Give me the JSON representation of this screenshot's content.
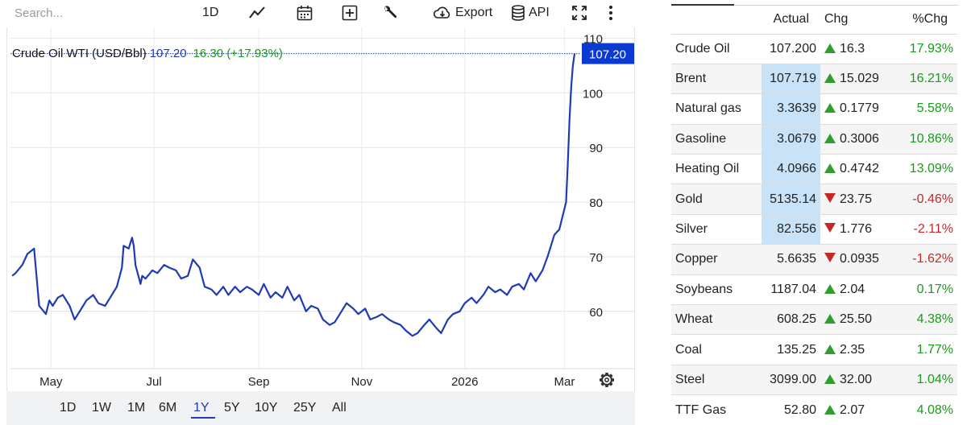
{
  "toolbar": {
    "search_placeholder": "Search...",
    "interval_label": "1D",
    "export_label": "Export",
    "api_label": "API"
  },
  "legend": {
    "name": "Crude Oil WTI (USD/Bbl)",
    "value": "107.20",
    "change": "16.30 (+17.93%)"
  },
  "chart_data": {
    "type": "line",
    "title": "Crude Oil WTI (USD/Bbl)",
    "xlabel": "",
    "ylabel": "",
    "x_ticks": [
      "May",
      "Jul",
      "Sep",
      "Nov",
      "2026",
      "Mar"
    ],
    "y_ticks": [
      60,
      70,
      80,
      90,
      100,
      110
    ],
    "ylim": [
      49.5,
      112
    ],
    "last_value_label": "107.20",
    "grid": true,
    "series": [
      {
        "color": "#1f3bb3",
        "x": [
          "2025-04-08",
          "2025-04-10",
          "2025-04-14",
          "2025-04-17",
          "2025-04-21",
          "2025-04-24",
          "2025-04-28",
          "2025-04-30",
          "2025-05-02",
          "2025-05-05",
          "2025-05-08",
          "2025-05-12",
          "2025-05-15",
          "2025-05-19",
          "2025-05-22",
          "2025-05-26",
          "2025-05-29",
          "2025-06-02",
          "2025-06-05",
          "2025-06-09",
          "2025-06-12",
          "2025-06-13",
          "2025-06-16",
          "2025-06-18",
          "2025-06-19",
          "2025-06-20",
          "2025-06-23",
          "2025-06-24",
          "2025-06-26",
          "2025-06-30",
          "2025-07-03",
          "2025-07-07",
          "2025-07-10",
          "2025-07-14",
          "2025-07-17",
          "2025-07-21",
          "2025-07-24",
          "2025-07-28",
          "2025-07-31",
          "2025-08-04",
          "2025-08-07",
          "2025-08-11",
          "2025-08-14",
          "2025-08-18",
          "2025-08-21",
          "2025-08-25",
          "2025-08-28",
          "2025-09-01",
          "2025-09-04",
          "2025-09-08",
          "2025-09-11",
          "2025-09-15",
          "2025-09-18",
          "2025-09-22",
          "2025-09-25",
          "2025-09-29",
          "2025-10-02",
          "2025-10-06",
          "2025-10-09",
          "2025-10-13",
          "2025-10-16",
          "2025-10-20",
          "2025-10-23",
          "2025-10-27",
          "2025-10-30",
          "2025-11-03",
          "2025-11-06",
          "2025-11-10",
          "2025-11-13",
          "2025-11-17",
          "2025-11-20",
          "2025-11-24",
          "2025-11-27",
          "2025-12-01",
          "2025-12-04",
          "2025-12-08",
          "2025-12-11",
          "2025-12-15",
          "2025-12-18",
          "2025-12-22",
          "2025-12-25",
          "2025-12-29",
          "2026-01-01",
          "2026-01-05",
          "2026-01-08",
          "2026-01-12",
          "2026-01-15",
          "2026-01-19",
          "2026-01-22",
          "2026-01-26",
          "2026-01-29",
          "2026-02-02",
          "2026-02-05",
          "2026-02-09",
          "2026-02-12",
          "2026-02-16",
          "2026-02-19",
          "2026-02-23",
          "2026-02-26",
          "2026-03-02",
          "2026-03-03",
          "2026-03-04",
          "2026-03-05",
          "2026-03-06",
          "2026-03-07"
        ],
        "y": [
          66.5,
          67.0,
          68.5,
          70.5,
          71.5,
          61.0,
          59.5,
          62.0,
          61.0,
          62.5,
          63.0,
          61.0,
          58.5,
          60.5,
          62.0,
          63.0,
          61.5,
          61.0,
          62.5,
          64.5,
          68.0,
          72.0,
          71.5,
          73.5,
          72.0,
          68.5,
          65.0,
          66.5,
          66.0,
          67.5,
          67.0,
          68.5,
          68.0,
          67.5,
          66.0,
          66.5,
          69.5,
          68.0,
          64.5,
          64.0,
          63.0,
          64.5,
          63.0,
          64.5,
          63.5,
          64.5,
          64.0,
          63.0,
          65.0,
          62.5,
          63.5,
          62.5,
          64.5,
          62.0,
          63.0,
          60.0,
          61.0,
          60.5,
          58.5,
          57.5,
          58.0,
          60.0,
          61.5,
          60.5,
          59.5,
          60.5,
          58.5,
          59.0,
          59.5,
          58.5,
          58.0,
          57.5,
          56.5,
          55.5,
          56.0,
          57.5,
          58.5,
          57.0,
          56.0,
          58.5,
          59.5,
          60.0,
          61.5,
          62.5,
          61.5,
          63.0,
          64.5,
          63.5,
          64.0,
          63.0,
          64.5,
          65.0,
          64.0,
          67.0,
          65.5,
          67.5,
          70.0,
          74.0,
          75.0,
          80.0,
          87.0,
          95.0,
          101.0,
          105.0,
          107.2
        ]
      }
    ]
  },
  "range_buttons": [
    "1D",
    "1W",
    "1M",
    "6M",
    "1Y",
    "5Y",
    "10Y",
    "25Y",
    "All"
  ],
  "range_active": "1Y",
  "table": {
    "headers": {
      "name": "",
      "actual": "Actual",
      "chg": "Chg",
      "pct": "%Chg"
    },
    "rows": [
      {
        "name": "Crude Oil",
        "actual": "107.200",
        "chg": "16.3",
        "pct": "17.93%",
        "dir": "up",
        "highlight": false
      },
      {
        "name": "Brent",
        "actual": "107.719",
        "chg": "15.029",
        "pct": "16.21%",
        "dir": "up",
        "highlight": true
      },
      {
        "name": "Natural gas",
        "actual": "3.3639",
        "chg": "0.1779",
        "pct": "5.58%",
        "dir": "up",
        "highlight": true
      },
      {
        "name": "Gasoline",
        "actual": "3.0679",
        "chg": "0.3006",
        "pct": "10.86%",
        "dir": "up",
        "highlight": true
      },
      {
        "name": "Heating Oil",
        "actual": "4.0966",
        "chg": "0.4742",
        "pct": "13.09%",
        "dir": "up",
        "highlight": true
      },
      {
        "name": "Gold",
        "actual": "5135.14",
        "chg": "23.75",
        "pct": "-0.46%",
        "dir": "down",
        "highlight": true
      },
      {
        "name": "Silver",
        "actual": "82.556",
        "chg": "1.776",
        "pct": "-2.11%",
        "dir": "down",
        "highlight": true
      },
      {
        "name": "Copper",
        "actual": "5.6635",
        "chg": "0.0935",
        "pct": "-1.62%",
        "dir": "down",
        "highlight": false
      },
      {
        "name": "Soybeans",
        "actual": "1187.04",
        "chg": "2.04",
        "pct": "0.17%",
        "dir": "up",
        "highlight": false
      },
      {
        "name": "Wheat",
        "actual": "608.25",
        "chg": "25.50",
        "pct": "4.38%",
        "dir": "up",
        "highlight": false
      },
      {
        "name": "Coal",
        "actual": "135.25",
        "chg": "2.35",
        "pct": "1.77%",
        "dir": "up",
        "highlight": false
      },
      {
        "name": "Steel",
        "actual": "3099.00",
        "chg": "32.00",
        "pct": "1.04%",
        "dir": "up",
        "highlight": false
      },
      {
        "name": "TTF Gas",
        "actual": "52.80",
        "chg": "2.07",
        "pct": "4.08%",
        "dir": "up",
        "highlight": false
      }
    ]
  },
  "colors": {
    "line": "#1f3bb3",
    "up": "#2e9f2e",
    "down": "#c62828",
    "highlight": "#c8e3f8"
  },
  "icons": {
    "line_chart": "line-chart-icon",
    "calendar": "calendar-icon",
    "add": "plus-box-icon",
    "settings_wrench": "wrench-icon",
    "export": "cloud-download-icon",
    "api": "database-icon",
    "fullscreen": "fullscreen-icon",
    "more": "more-vertical-icon",
    "chart_settings": "gear-icon"
  }
}
